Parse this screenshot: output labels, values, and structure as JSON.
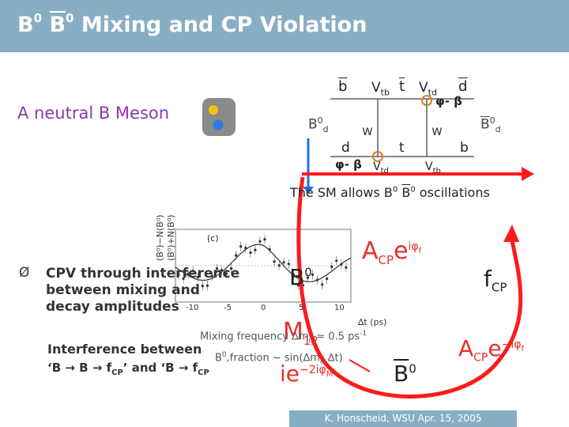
{
  "slide": {
    "title": "Mixing and CP Violation",
    "title_b0": "B",
    "title_b0bar": "B",
    "title_sup": "0",
    "neutral_label": "A neutral B Meson",
    "sm_text_pre": "The SM allows B",
    "sm_text_b0bar": "B",
    "sm_text_sup": "0",
    "sm_text_post": " oscillations",
    "bullet_symbol": "Ø",
    "cpv_line1": "CPV through interference",
    "cpv_line2": "between mixing and",
    "cpv_line3": "decay amplitudes",
    "mixing_freq": "Mixing frequency ∆m",
    "mixing_freq_sub": "d",
    "mixing_freq_val": " ≈ 0.5 ps",
    "mixing_freq_exp": "-1",
    "interference_line1": "Interference between",
    "interference_line2": "‘B → B → f",
    "interference_line2_sub": "CP",
    "interference_line2_mid": "’ and ‘B → f",
    "interference_line2_sub2": "CP",
    "fraction_text": "B",
    "fraction_sup": "0",
    "fraction_rest": ",fraction ~ sin(∆m",
    "fraction_sub": "d",
    "fraction_end": " ∆t)",
    "footer": "K. Honscheid, WSU  Apr. 15, 2005"
  },
  "diagram": {
    "quark_b_top": "b",
    "vtb_top": "V",
    "vtb_top_sub": "tb",
    "t_top": "t",
    "vtd_top": "V",
    "vtd_top_sub": "td",
    "d_top": "d",
    "phi_beta_top": "φ- β",
    "bd0_left": "B",
    "bd0_left_sup": "0",
    "bd0_left_sub": "d",
    "w_left": "w",
    "w_right": "w",
    "bd0_right": "B",
    "bd0_right_sup": "0",
    "bd0_right_sub": "d",
    "d_bottom": "d",
    "t_bottom": "t",
    "b_bottom": "b",
    "phi_beta_bottom": "φ- β",
    "vtd_bottom": "V",
    "vtd_bottom_sub": "td",
    "vtb_bottom": "V",
    "vtb_bottom_sub": "tb"
  },
  "plot": {
    "ylabel": "(B⁰)−N(B⁰)",
    "ylabel2": "(B⁰)+N(B⁰)",
    "panel_label": "(c)",
    "xlabel": "∆t (ps)",
    "x_ticks": [
      "-10",
      "-5",
      "0",
      "5",
      "10"
    ]
  },
  "formulas": {
    "acp_top": "A",
    "acp_top_sub": "CP",
    "acp_top_e": "e",
    "acp_top_exp": "iφ",
    "acp_top_exp_sub": "f",
    "b0_top": "B",
    "b0_top_sup": "0",
    "fcp": "f",
    "fcp_sub": "CP",
    "m12": "M",
    "m12_sub": "12",
    "ie": "ie",
    "ie_exp": "−2iφ",
    "ie_exp_sub": "M",
    "b0bar_bottom": "B",
    "b0bar_bottom_sup": "0",
    "acp_bottom": "A",
    "acp_bottom_sub": "CP",
    "acp_bottom_e": "e",
    "acp_bottom_exp": "−iφ",
    "acp_bottom_exp_sub": "f"
  },
  "colors": {
    "title_bar": "#88aec4",
    "purple_text": "#8a3aa8",
    "arc_red": "#ff1a1a",
    "formula_red": "#e2312b",
    "orange": "#e07a1e",
    "blue_arrow": "#1e6ff0"
  }
}
